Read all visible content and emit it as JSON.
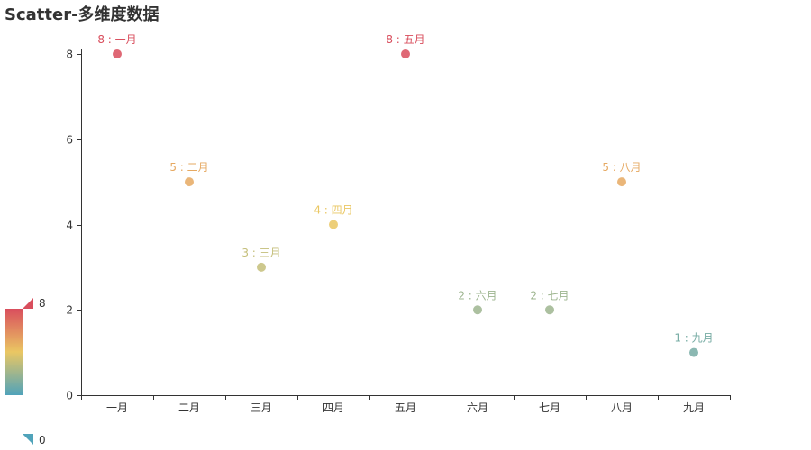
{
  "chart_data": {
    "type": "scatter",
    "title": "Scatter-多维度数据",
    "categories": [
      "一月",
      "二月",
      "三月",
      "四月",
      "五月",
      "六月",
      "七月",
      "八月",
      "九月"
    ],
    "values": [
      8,
      5,
      3,
      4,
      8,
      2,
      2,
      5,
      1
    ],
    "ylim": [
      0,
      8
    ],
    "yticks": [
      0,
      2,
      4,
      6,
      8
    ],
    "xlabel": "",
    "ylabel": "",
    "grid": false,
    "label_separator": " : ",
    "visual_map": {
      "min": 0,
      "max": 8,
      "min_label": "0",
      "max_label": "8",
      "colors": [
        "#50a3ba",
        "#eac763",
        "#d94e5d"
      ],
      "position": "bottom-left"
    }
  }
}
